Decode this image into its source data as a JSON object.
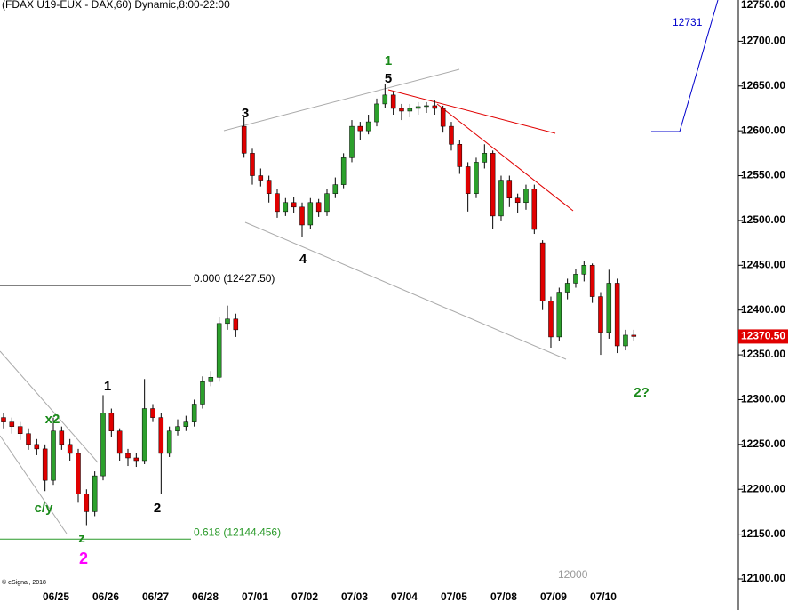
{
  "chart_data": {
    "type": "candlestick",
    "title": "(FDAX U19-EUX - DAX,60) Dynamic,8:00-22:00",
    "copyright": "© eSignal, 2018",
    "footnote": "12000",
    "up_color": "#2ca02c",
    "down_color": "#e00000",
    "categories": [
      null,
      null,
      null,
      null,
      null,
      null,
      "06/25",
      null,
      null,
      null,
      null,
      null,
      "06/26",
      null,
      null,
      null,
      null,
      null,
      "06/27",
      null,
      null,
      null,
      null,
      null,
      "06/28",
      null,
      null,
      null,
      null,
      null,
      "07/01",
      null,
      null,
      null,
      null,
      null,
      "07/02",
      null,
      null,
      null,
      null,
      null,
      "07/03",
      null,
      null,
      null,
      null,
      null,
      "07/04",
      null,
      null,
      null,
      null,
      null,
      "07/05",
      null,
      null,
      null,
      null,
      null,
      "07/08",
      null,
      null,
      null,
      null,
      null,
      "07/09",
      null,
      null,
      null,
      null,
      null,
      "07/10",
      null,
      null,
      null,
      null
    ],
    "open": [
      12280,
      12275,
      12270,
      12262,
      12250,
      12245,
      12210,
      12265,
      12250,
      12240,
      12195,
      12175,
      12215,
      12285,
      12265,
      12240,
      12235,
      12232,
      12290,
      12280,
      12240,
      12265,
      12270,
      12275,
      12295,
      12320,
      12325,
      12385,
      12390,
      12605,
      12575,
      12550,
      12545,
      12530,
      12510,
      12520,
      12515,
      12495,
      12520,
      12510,
      12530,
      12540,
      12570,
      12605,
      12600,
      12610,
      12630,
      12640,
      12625,
      12622,
      12625,
      12627,
      12628,
      12625,
      12605,
      12585,
      12560,
      12530,
      12565,
      12575,
      12505,
      12545,
      12525,
      12520,
      12535,
      12475,
      12410,
      12370,
      12420,
      12430,
      12440,
      12450,
      12415,
      12375,
      12430,
      12360,
      12372
    ],
    "high": [
      12285,
      12280,
      12275,
      12268,
      12256,
      12250,
      12280,
      12270,
      12256,
      12245,
      12200,
      12220,
      12305,
      12290,
      12268,
      12245,
      12240,
      12323,
      12295,
      12285,
      12270,
      12278,
      12282,
      12300,
      12326,
      12332,
      12392,
      12405,
      12396,
      12615,
      12580,
      12558,
      12550,
      12535,
      12525,
      12526,
      12520,
      12525,
      12524,
      12535,
      12548,
      12575,
      12612,
      12610,
      12618,
      12636,
      12652,
      12644,
      12630,
      12630,
      12632,
      12632,
      12634,
      12628,
      12610,
      12590,
      12565,
      12570,
      12585,
      12578,
      12550,
      12550,
      12530,
      12540,
      12540,
      12478,
      12415,
      12425,
      12435,
      12446,
      12455,
      12452,
      12420,
      12445,
      12435,
      12378,
      12378
    ],
    "low": [
      12268,
      12262,
      12255,
      12244,
      12238,
      12198,
      12205,
      12244,
      12232,
      12185,
      12160,
      12170,
      12210,
      12258,
      12232,
      12226,
      12225,
      12228,
      12275,
      12195,
      12236,
      12260,
      12265,
      12270,
      12290,
      12315,
      12320,
      12378,
      12370,
      12570,
      12540,
      12538,
      12520,
      12503,
      12505,
      12508,
      12482,
      12490,
      12504,
      12505,
      12525,
      12536,
      12565,
      12590,
      12596,
      12605,
      12625,
      12618,
      12612,
      12615,
      12618,
      12620,
      12618,
      12598,
      12578,
      12552,
      12510,
      12525,
      12558,
      12490,
      12500,
      12515,
      12508,
      12512,
      12485,
      12400,
      12358,
      12365,
      12412,
      12425,
      12432,
      12408,
      12350,
      12368,
      12352,
      12355,
      12365
    ],
    "close": [
      12275,
      12270,
      12262,
      12250,
      12245,
      12210,
      12265,
      12250,
      12240,
      12195,
      12175,
      12215,
      12285,
      12265,
      12240,
      12235,
      12232,
      12290,
      12280,
      12240,
      12265,
      12270,
      12275,
      12295,
      12320,
      12325,
      12385,
      12390,
      12378,
      12575,
      12550,
      12545,
      12530,
      12510,
      12520,
      12515,
      12495,
      12520,
      12510,
      12530,
      12540,
      12570,
      12605,
      12600,
      12610,
      12630,
      12640,
      12625,
      12622,
      12625,
      12627,
      12628,
      12625,
      12605,
      12585,
      12560,
      12530,
      12565,
      12575,
      12505,
      12545,
      12525,
      12520,
      12535,
      12490,
      12410,
      12370,
      12420,
      12430,
      12440,
      12450,
      12415,
      12375,
      12430,
      12360,
      12372,
      12370.5
    ],
    "ylim": [
      12100,
      12750
    ],
    "yticks": [
      {
        "value": 12100,
        "label": "12100.00"
      },
      {
        "value": 12150,
        "label": "12150.00"
      },
      {
        "value": 12200,
        "label": "12200.00"
      },
      {
        "value": 12250,
        "label": "12250.00"
      },
      {
        "value": 12300,
        "label": "12300.00"
      },
      {
        "value": 12350,
        "label": "12350.00"
      },
      {
        "value": 12400,
        "label": "12400.00"
      },
      {
        "value": 12450,
        "label": "12450.00"
      },
      {
        "value": 12500,
        "label": "12500.00"
      },
      {
        "value": 12550,
        "label": "12550.00"
      },
      {
        "value": 12600,
        "label": "12600.00"
      },
      {
        "value": 12650,
        "label": "12650.00"
      },
      {
        "value": 12700,
        "label": "12700.00"
      },
      {
        "value": 12750,
        "label": "12750.00"
      }
    ],
    "last_price": {
      "value": 12370.5,
      "label": "12370.50",
      "color": "#e00000"
    },
    "levels": [
      {
        "value": 12427.5,
        "label": "0.000 (12427.50)",
        "color": "#000000"
      },
      {
        "value": 12144.456,
        "label": "0.618 (12144.456)",
        "color": "#2a9a2a"
      }
    ],
    "target": {
      "value": 12731,
      "color": "#0000cc"
    },
    "annotations": [
      {
        "text": "1",
        "color": "#1a8a1a"
      },
      {
        "text": "5",
        "color": "#000000"
      },
      {
        "text": "3",
        "color": "#000000"
      },
      {
        "text": "4",
        "color": "#000000"
      },
      {
        "text": "1",
        "color": "#000000"
      },
      {
        "text": "2",
        "color": "#000000"
      },
      {
        "text": "x2",
        "color": "#1a8a1a"
      },
      {
        "text": "c/y",
        "color": "#1a8a1a"
      },
      {
        "text": "z",
        "color": "#1a8a1a"
      },
      {
        "text": "2",
        "color": "#ff00ff"
      },
      {
        "text": "2?",
        "color": "#1a8a1a"
      }
    ]
  }
}
